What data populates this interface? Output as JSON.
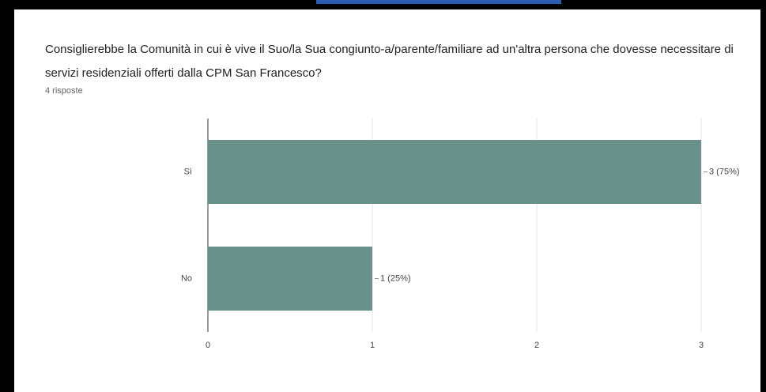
{
  "chart_data": {
    "type": "bar",
    "orientation": "horizontal",
    "title": "Consiglierebbe la Comunità in cui è vive il Suo/la Sua congiunto-a/parente/familiare ad un'altra persona che dovesse necessitare di servizi residenziali offerti dalla CPM San Francesco?",
    "subtitle": "4 risposte",
    "categories": [
      "Sì",
      "No"
    ],
    "values": [
      3,
      1
    ],
    "value_labels": [
      "3 (75%)",
      "1 (25%)"
    ],
    "color": "#6a9189",
    "xlim": [
      0,
      3
    ],
    "xticks": [
      0,
      1,
      2,
      3
    ],
    "grid": true
  }
}
